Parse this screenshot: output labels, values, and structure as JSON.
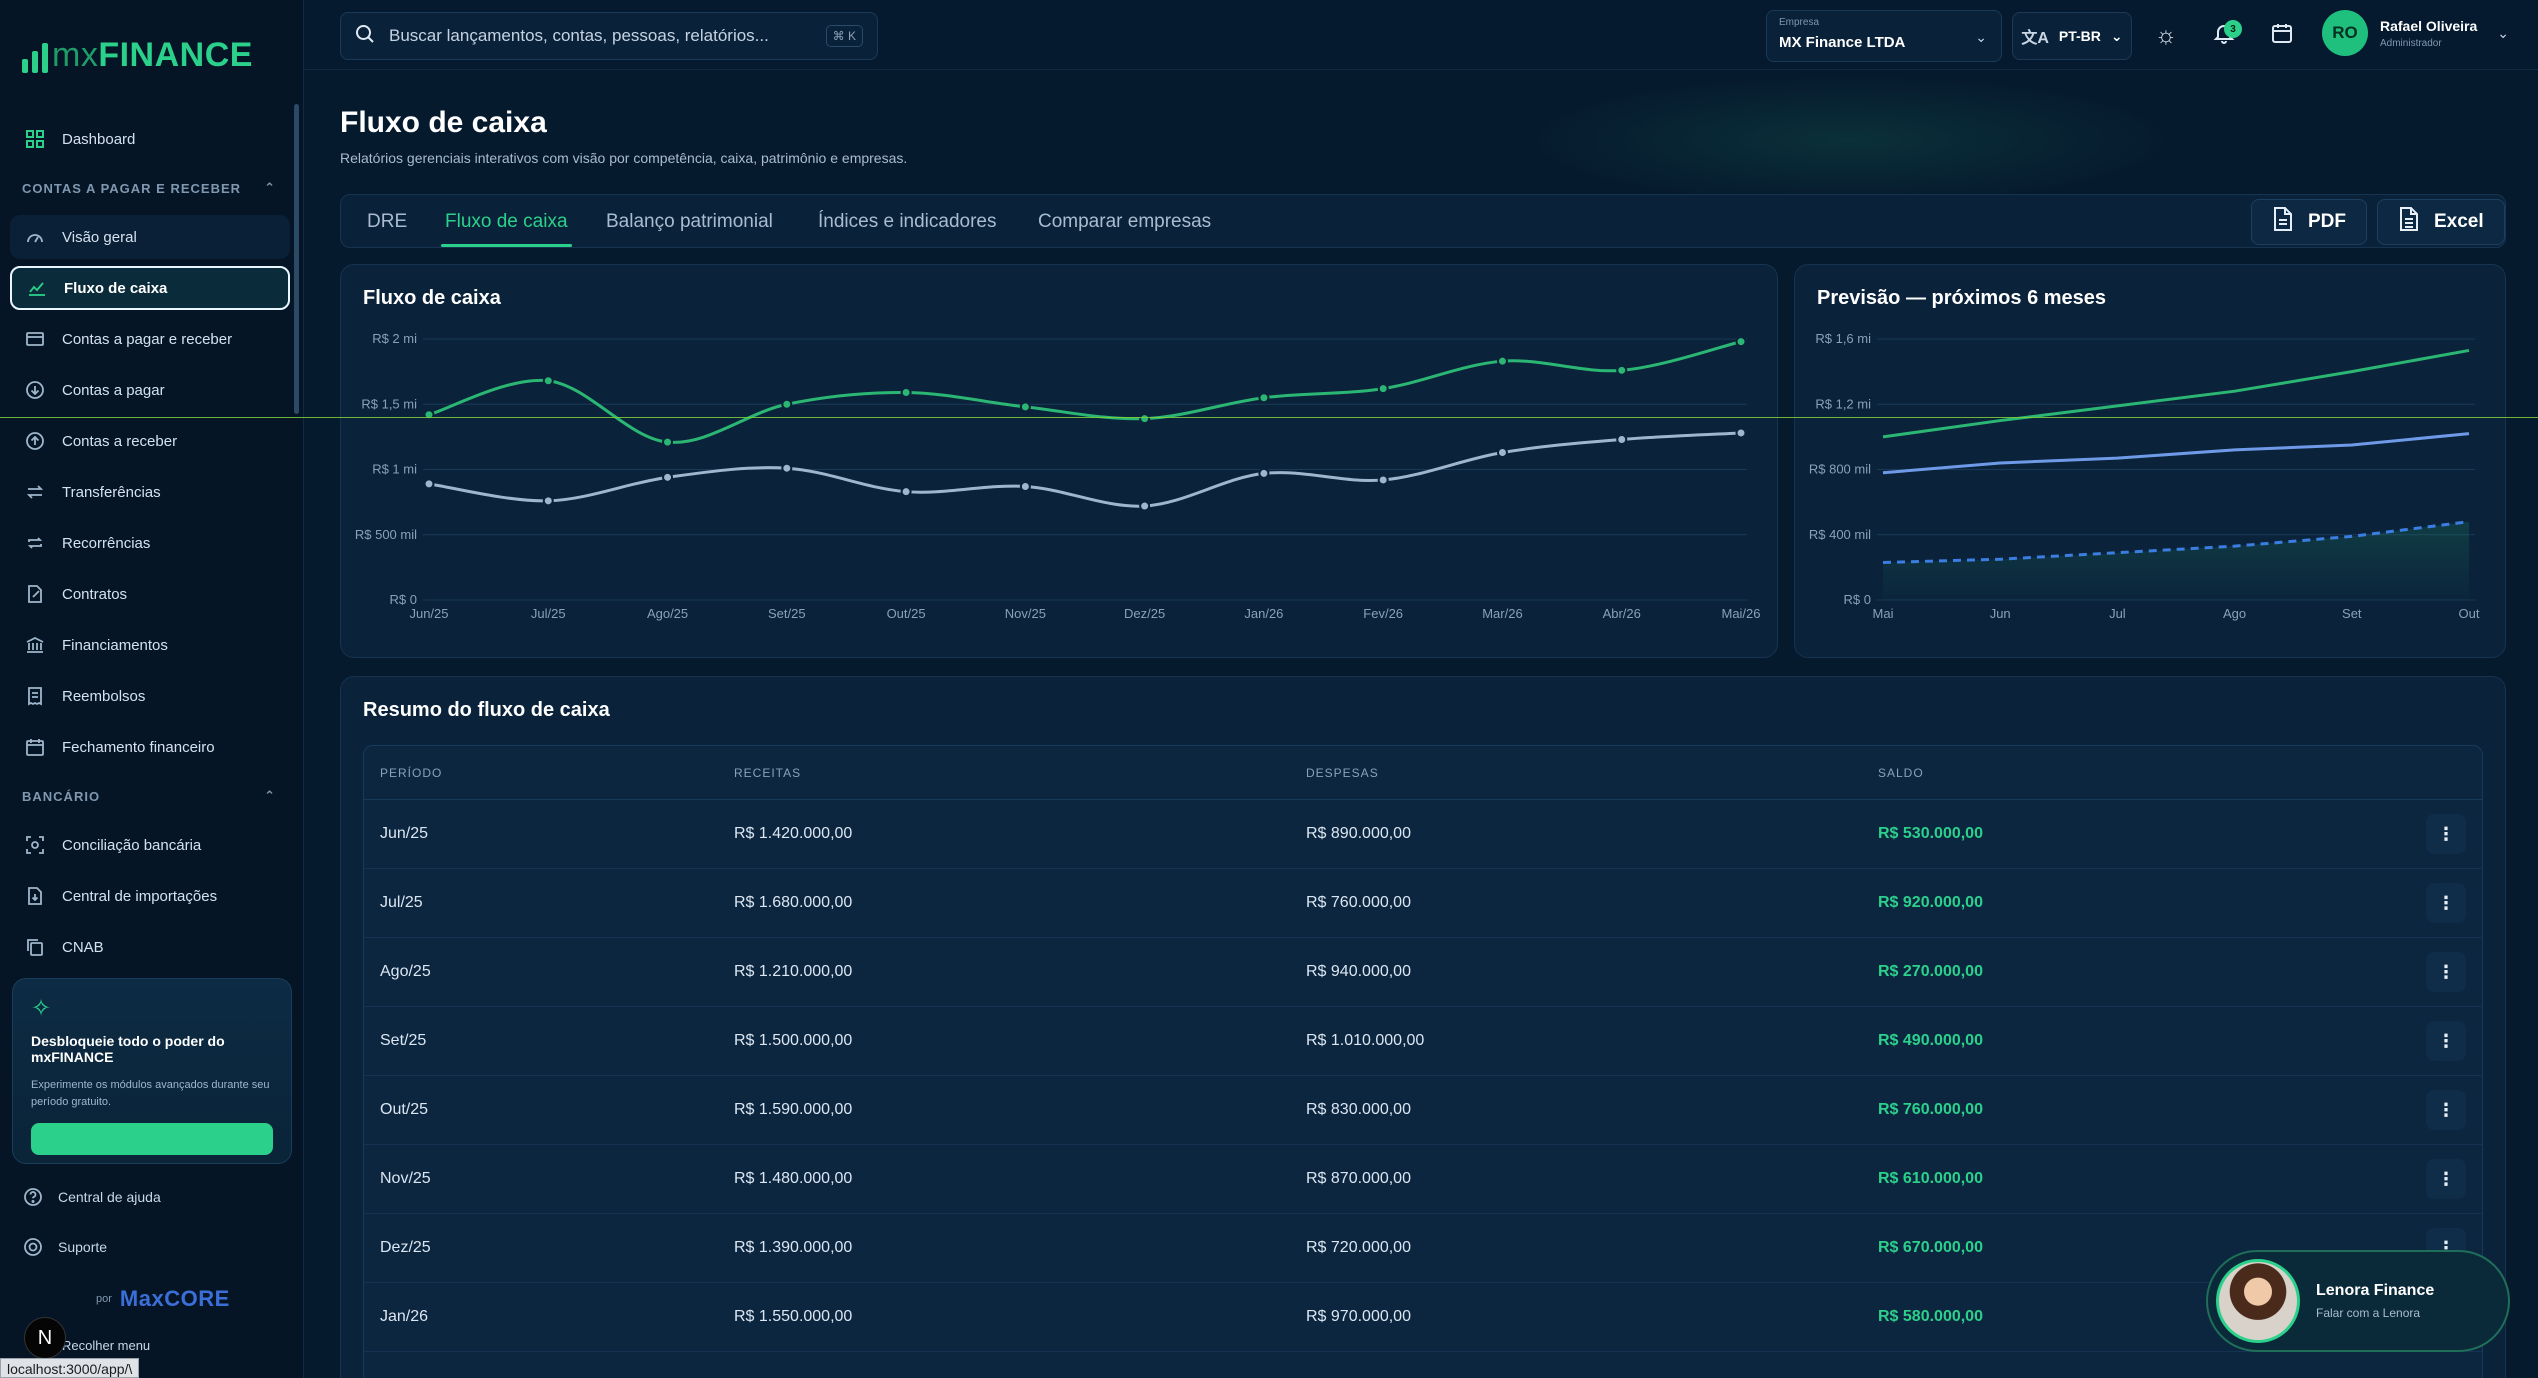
{
  "brand": {
    "prefix": "mx",
    "name": "FINANCE"
  },
  "search": {
    "placeholder": "Buscar lançamentos, contas, pessoas, relatórios...",
    "shortcut": "⌘ K"
  },
  "company": {
    "label": "Empresa",
    "value": "MX Finance LTDA"
  },
  "language": "PT-BR",
  "notifications": {
    "count": "3"
  },
  "user": {
    "initials": "RO",
    "name": "Rafael Oliveira",
    "role": "Administrador"
  },
  "sidebar": {
    "dashboard": "Dashboard",
    "section_contas": "CONTAS A PAGAR E RECEBER",
    "contas_items": [
      {
        "label": "Visão geral",
        "icon": "gauge-icon"
      },
      {
        "label": "Fluxo de caixa",
        "icon": "chart-line-icon"
      },
      {
        "label": "Contas a pagar e receber",
        "icon": "envelope-icon"
      },
      {
        "label": "Contas a pagar",
        "icon": "arrow-down-circle-icon"
      },
      {
        "label": "Contas a receber",
        "icon": "arrow-up-circle-icon"
      },
      {
        "label": "Transferências",
        "icon": "transfer-icon"
      },
      {
        "label": "Recorrências",
        "icon": "repeat-icon"
      },
      {
        "label": "Contratos",
        "icon": "contract-icon"
      },
      {
        "label": "Financiamentos",
        "icon": "bank-icon"
      },
      {
        "label": "Reembolsos",
        "icon": "receipt-icon"
      },
      {
        "label": "Fechamento financeiro",
        "icon": "calendar-icon"
      }
    ],
    "section_bancario": "BANCÁRIO",
    "bancario_items": [
      {
        "label": "Conciliação bancária",
        "icon": "scan-icon"
      },
      {
        "label": "Central de importações",
        "icon": "import-icon"
      },
      {
        "label": "CNAB",
        "icon": "copy-icon"
      }
    ],
    "promo": {
      "title": "Desbloqueie todo o poder do mxFINANCE",
      "text": "Experimente os módulos avançados durante seu período gratuito."
    },
    "help": "Central de ajuda",
    "support": "Suporte",
    "powered_prefix": "por",
    "powered_brand": "MaxCORE",
    "collapse": "Recolher menu"
  },
  "status_url": "localhost:3000/app/\\",
  "page": {
    "title": "Fluxo de caixa",
    "subtitle": "Relatórios gerenciais interativos com visão por competência, caixa, patrimônio e empresas."
  },
  "tabs": [
    "DRE",
    "Fluxo de caixa",
    "Balanço patrimonial",
    "Índices e indicadores",
    "Comparar empresas"
  ],
  "export": {
    "pdf": "PDF",
    "excel": "Excel"
  },
  "chart_data": [
    {
      "type": "line",
      "title": "Fluxo de caixa",
      "categories": [
        "Jun/25",
        "Jul/25",
        "Ago/25",
        "Set/25",
        "Out/25",
        "Nov/25",
        "Dez/25",
        "Jan/26",
        "Fev/26",
        "Mar/26",
        "Abr/26",
        "Mai/26"
      ],
      "y_ticks": [
        "R$ 0",
        "R$ 500 mil",
        "R$ 1 mi",
        "R$ 1,5 mi",
        "R$ 2 mi"
      ],
      "ylim": [
        0,
        2000000
      ],
      "series": [
        {
          "color": "#2bb673",
          "values": [
            1420000,
            1680000,
            1210000,
            1500000,
            1590000,
            1480000,
            1390000,
            1550000,
            1620000,
            1830000,
            1760000,
            1980000
          ]
        },
        {
          "color": "#9fb6cc",
          "values": [
            890000,
            760000,
            940000,
            1010000,
            830000,
            870000,
            720000,
            970000,
            920000,
            1130000,
            1230000,
            1280000
          ]
        }
      ],
      "grid": true
    },
    {
      "type": "line",
      "title": "Previsão — próximos 6 meses",
      "categories": [
        "Mai",
        "Jun",
        "Jul",
        "Ago",
        "Set",
        "Out"
      ],
      "y_ticks": [
        "R$ 0",
        "R$ 400 mil",
        "R$ 800 mil",
        "R$ 1,2 mi",
        "R$ 1,6 mi"
      ],
      "ylim": [
        0,
        1600000
      ],
      "series": [
        {
          "color": "#2bb673",
          "values": [
            1000000,
            1100000,
            1190000,
            1280000,
            1400000,
            1530000
          ]
        },
        {
          "color": "#6e9ae8",
          "values": [
            780000,
            840000,
            870000,
            920000,
            950000,
            1020000
          ]
        },
        {
          "color": "#3b7de0",
          "dashed": true,
          "area": true,
          "values": [
            230000,
            250000,
            290000,
            330000,
            390000,
            480000
          ]
        }
      ],
      "grid": true
    }
  ],
  "summary": {
    "title": "Resumo do fluxo de caixa",
    "headers": {
      "periodo": "PERÍODO",
      "receitas": "RECEITAS",
      "despesas": "DESPESAS",
      "saldo": "SALDO"
    },
    "rows": [
      {
        "periodo": "Jun/25",
        "receitas": "R$ 1.420.000,00",
        "despesas": "R$ 890.000,00",
        "saldo": "R$ 530.000,00"
      },
      {
        "periodo": "Jul/25",
        "receitas": "R$ 1.680.000,00",
        "despesas": "R$ 760.000,00",
        "saldo": "R$ 920.000,00"
      },
      {
        "periodo": "Ago/25",
        "receitas": "R$ 1.210.000,00",
        "despesas": "R$ 940.000,00",
        "saldo": "R$ 270.000,00"
      },
      {
        "periodo": "Set/25",
        "receitas": "R$ 1.500.000,00",
        "despesas": "R$ 1.010.000,00",
        "saldo": "R$ 490.000,00"
      },
      {
        "periodo": "Out/25",
        "receitas": "R$ 1.590.000,00",
        "despesas": "R$ 830.000,00",
        "saldo": "R$ 760.000,00"
      },
      {
        "periodo": "Nov/25",
        "receitas": "R$ 1.480.000,00",
        "despesas": "R$ 870.000,00",
        "saldo": "R$ 610.000,00"
      },
      {
        "periodo": "Dez/25",
        "receitas": "R$ 1.390.000,00",
        "despesas": "R$ 720.000,00",
        "saldo": "R$ 670.000,00"
      },
      {
        "periodo": "Jan/26",
        "receitas": "R$ 1.550.000,00",
        "despesas": "R$ 970.000,00",
        "saldo": "R$ 580.000,00"
      }
    ]
  },
  "assistant": {
    "name": "Lenora Finance",
    "subtitle": "Falar com a Lenora"
  }
}
